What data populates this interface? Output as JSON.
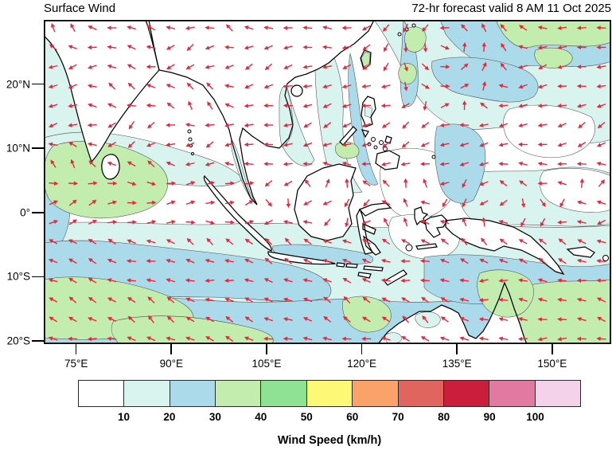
{
  "header": {
    "title": "Surface Wind",
    "subtitle": "72-hr forecast valid 8 AM 11 Oct 2025"
  },
  "axes": {
    "lat_labels": [
      "20°N",
      "10°N",
      "0°",
      "10°S",
      "20°S"
    ],
    "lon_labels": [
      "75°E",
      "90°E",
      "105°E",
      "120°E",
      "135°E",
      "150°E"
    ]
  },
  "colorbar": {
    "title": "Wind Speed (km/h)",
    "tick_labels": [
      "10",
      "20",
      "30",
      "40",
      "50",
      "60",
      "70",
      "80",
      "90",
      "100"
    ],
    "colors": [
      "#ffffff",
      "#d9f3ef",
      "#abdaea",
      "#c3ecaf",
      "#8fe294",
      "#fdf876",
      "#fba26a",
      "#e0655e",
      "#cb1e3c",
      "#e279a1",
      "#f4d2ea"
    ],
    "ranges": [
      "<10",
      "10-20",
      "20-30",
      "30-40",
      "40-50",
      "50-60",
      "60-70",
      "70-80",
      "80-90",
      "90-100",
      ">100"
    ]
  },
  "chart_data": {
    "type": "heatmap",
    "title": "Surface Wind",
    "subtitle": "72-hr forecast valid 8 AM 11 Oct 2025",
    "x_axis": {
      "label_ticks": [
        "75°E",
        "90°E",
        "105°E",
        "120°E",
        "135°E",
        "150°E"
      ],
      "range_deg_east": [
        70,
        159
      ]
    },
    "y_axis": {
      "label_ticks": [
        "20°N",
        "10°N",
        "0°",
        "10°S",
        "20°S"
      ],
      "range_deg_north": [
        -20.5,
        30
      ]
    },
    "colorbar": {
      "label": "Wind Speed (km/h)",
      "unit": "km/h",
      "level_boundaries": [
        10,
        20,
        30,
        40,
        50,
        60,
        70,
        80,
        90,
        100
      ]
    },
    "vector_overlay": {
      "description": "red wind-direction arrows on a regular ~2 degree grid",
      "arrow_color": "#e8273c"
    },
    "regions": [
      {
        "area": "Equatorial Indian Ocean SW of Sri Lanka",
        "wind_speed_kmh": "30-40",
        "direction": "westerly (arrows point east)"
      },
      {
        "area": "Bay of Bengal / Arabian Sea",
        "wind_speed_kmh": "10-25",
        "direction": "variable"
      },
      {
        "area": "South China Sea",
        "wind_speed_kmh": "20-30",
        "direction": "northeasterly"
      },
      {
        "area": "NW Pacific north of 15N",
        "wind_speed_kmh": "20-40",
        "direction": "easterly trades with cyclonic circulation near 130E 26N"
      },
      {
        "area": "Southern Indian Ocean 5S-20S",
        "wind_speed_kmh": "20-40",
        "direction": "southeasterly trades (arrows point northwest)"
      },
      {
        "area": "Arafura and Coral Seas",
        "wind_speed_kmh": "20-40",
        "direction": "easterly"
      },
      {
        "area": "Interior landmasses (Borneo, New Guinea, Indochina)",
        "wind_speed_kmh": "<10-20",
        "direction": "light variable"
      }
    ]
  }
}
